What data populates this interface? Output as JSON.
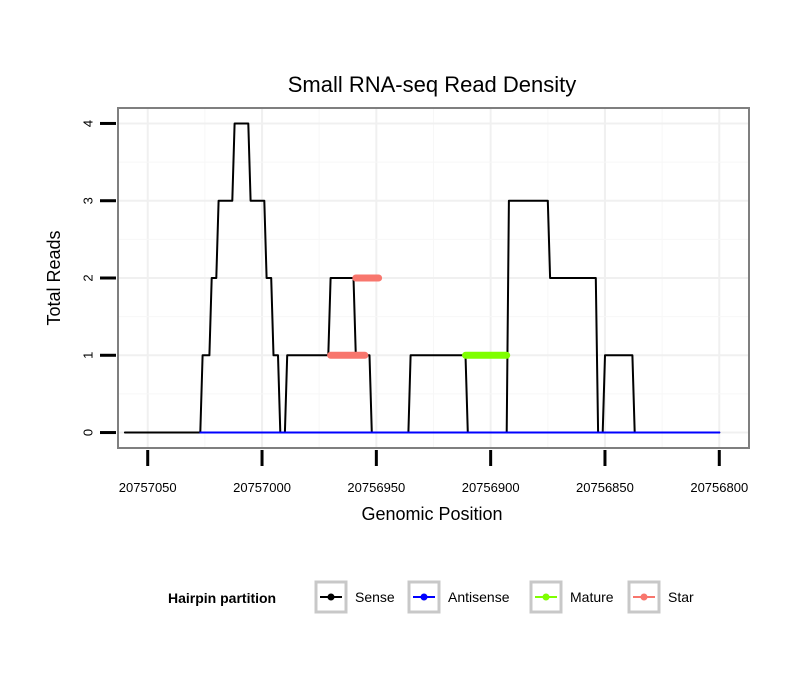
{
  "chart_data": {
    "type": "line",
    "title": "Small RNA-seq Read Density",
    "xlabel": "Genomic Position",
    "ylabel": "Total Reads",
    "x_reversed": true,
    "xlim": [
      20757063,
      20756787
    ],
    "ylim": [
      -0.2,
      4.2
    ],
    "x_ticks": [
      20757050,
      20757000,
      20756950,
      20756900,
      20756850,
      20756800
    ],
    "x_tick_labels": [
      "20757050",
      "20757000",
      "20756950",
      "20756900",
      "20756850",
      "20756800"
    ],
    "y_ticks": [
      0,
      1,
      2,
      3,
      4
    ],
    "y_tick_labels": [
      "0",
      "1",
      "2",
      "3",
      "4"
    ],
    "grid": true,
    "legend": {
      "title": "Hairpin partition",
      "position": "bottom",
      "entries": [
        {
          "name": "Sense",
          "color": "#000000"
        },
        {
          "name": "Antisense",
          "color": "#0000ff"
        },
        {
          "name": "Mature",
          "color": "#7fff00"
        },
        {
          "name": "Star",
          "color": "#f8766d"
        }
      ]
    },
    "series": [
      {
        "name": "Sense",
        "color": "#000000",
        "x": [
          20757060,
          20757027,
          20757026,
          20757023,
          20757022,
          20757020,
          20757019,
          20757013,
          20757012,
          20757006,
          20757005,
          20756999,
          20756998,
          20756996,
          20756995,
          20756993,
          20756992,
          20756990,
          20756989,
          20756971,
          20756970,
          20756960,
          20756959,
          20756953,
          20756952,
          20756936,
          20756935,
          20756911,
          20756910,
          20756893,
          20756892,
          20756875,
          20756874,
          20756854,
          20756853,
          20756851,
          20756850,
          20756838,
          20756837,
          20756818,
          20756817,
          20756800
        ],
        "y": [
          0,
          0,
          1,
          1,
          2,
          2,
          3,
          3,
          4,
          4,
          3,
          3,
          2,
          2,
          1,
          1,
          0,
          0,
          1,
          1,
          2,
          2,
          1,
          1,
          0,
          0,
          1,
          1,
          0,
          0,
          3,
          3,
          2,
          2,
          0,
          0,
          1,
          1,
          0,
          0,
          0,
          0
        ]
      },
      {
        "name": "Antisense",
        "color": "#0000ff",
        "x": [
          20757027,
          20756800
        ],
        "y": [
          0,
          0
        ]
      },
      {
        "name": "Mature",
        "color": "#7fff00",
        "x": [
          20756911,
          20756893
        ],
        "y": [
          1,
          1
        ]
      },
      {
        "name": "Star",
        "color": "#f8766d",
        "segments": [
          {
            "x": [
              20756970,
              20756955
            ],
            "y": [
              1,
              1
            ]
          },
          {
            "x": [
              20756959,
              20756949
            ],
            "y": [
              2,
              2
            ]
          }
        ]
      }
    ]
  }
}
